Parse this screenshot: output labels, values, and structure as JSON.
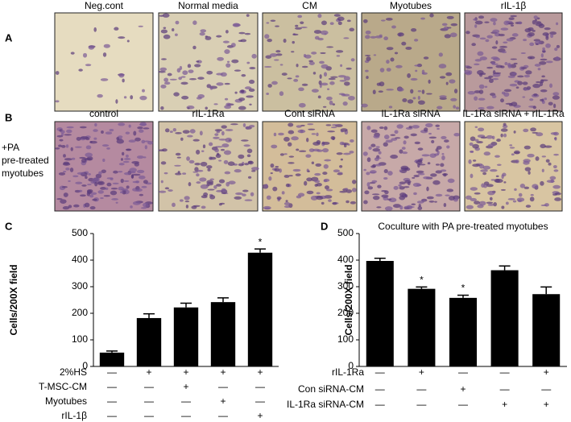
{
  "panel_a": {
    "label": "A",
    "images": [
      "Neg.cont",
      "Normal media",
      "CM",
      "Myotubes",
      "rIL-1β"
    ]
  },
  "panel_b": {
    "label": "B",
    "side_label": [
      "+PA",
      "pre-treated",
      "myotubes"
    ],
    "images": [
      "control",
      "rIL-1Ra",
      "Cont siRNA",
      "IL-1Ra siRNA",
      "IL-1Ra siRNA + rIL-1Ra"
    ]
  },
  "chart_data": [
    {
      "type": "bar",
      "panel": "C",
      "y_label": "Cells/200X field",
      "color": "#000000",
      "values": [
        52,
        182,
        222,
        242,
        428
      ],
      "errors": [
        6,
        16,
        16,
        16,
        14
      ],
      "markers": [
        null,
        null,
        null,
        null,
        "*"
      ],
      "ylim": [
        0,
        500
      ],
      "yticks": [
        0,
        100,
        200,
        300,
        400,
        500
      ],
      "conditions": [
        {
          "name": "2%HS",
          "signs": [
            "—",
            "+",
            "+",
            "+",
            "+"
          ]
        },
        {
          "name": "T-MSC-CM",
          "signs": [
            "—",
            "—",
            "+",
            "—",
            "—"
          ]
        },
        {
          "name": "Myotubes",
          "signs": [
            "—",
            "—",
            "—",
            "+",
            "—"
          ]
        },
        {
          "name": "rIL-1β",
          "signs": [
            "—",
            "—",
            "—",
            "—",
            "+"
          ]
        }
      ]
    },
    {
      "type": "bar",
      "panel": "D",
      "title": "Coculture with PA pre-treated myotubes",
      "y_label": "Cells/200X field",
      "color": "#000000",
      "values": [
        397,
        292,
        258,
        362,
        272
      ],
      "errors": [
        10,
        7,
        10,
        16,
        27
      ],
      "markers": [
        null,
        "*",
        "*",
        null,
        null
      ],
      "ylim": [
        0,
        500
      ],
      "yticks": [
        0,
        100,
        200,
        300,
        400,
        500
      ],
      "conditions": [
        {
          "name": "rIL-1Ra",
          "signs": [
            "—",
            "+",
            "—",
            "—",
            "+"
          ]
        },
        {
          "name": "Con siRNA-CM",
          "signs": [
            "—",
            "—",
            "+",
            "—",
            "—"
          ]
        },
        {
          "name": "IL-1Ra siRNA-CM",
          "signs": [
            "—",
            "—",
            "—",
            "+",
            "+"
          ]
        }
      ]
    }
  ]
}
